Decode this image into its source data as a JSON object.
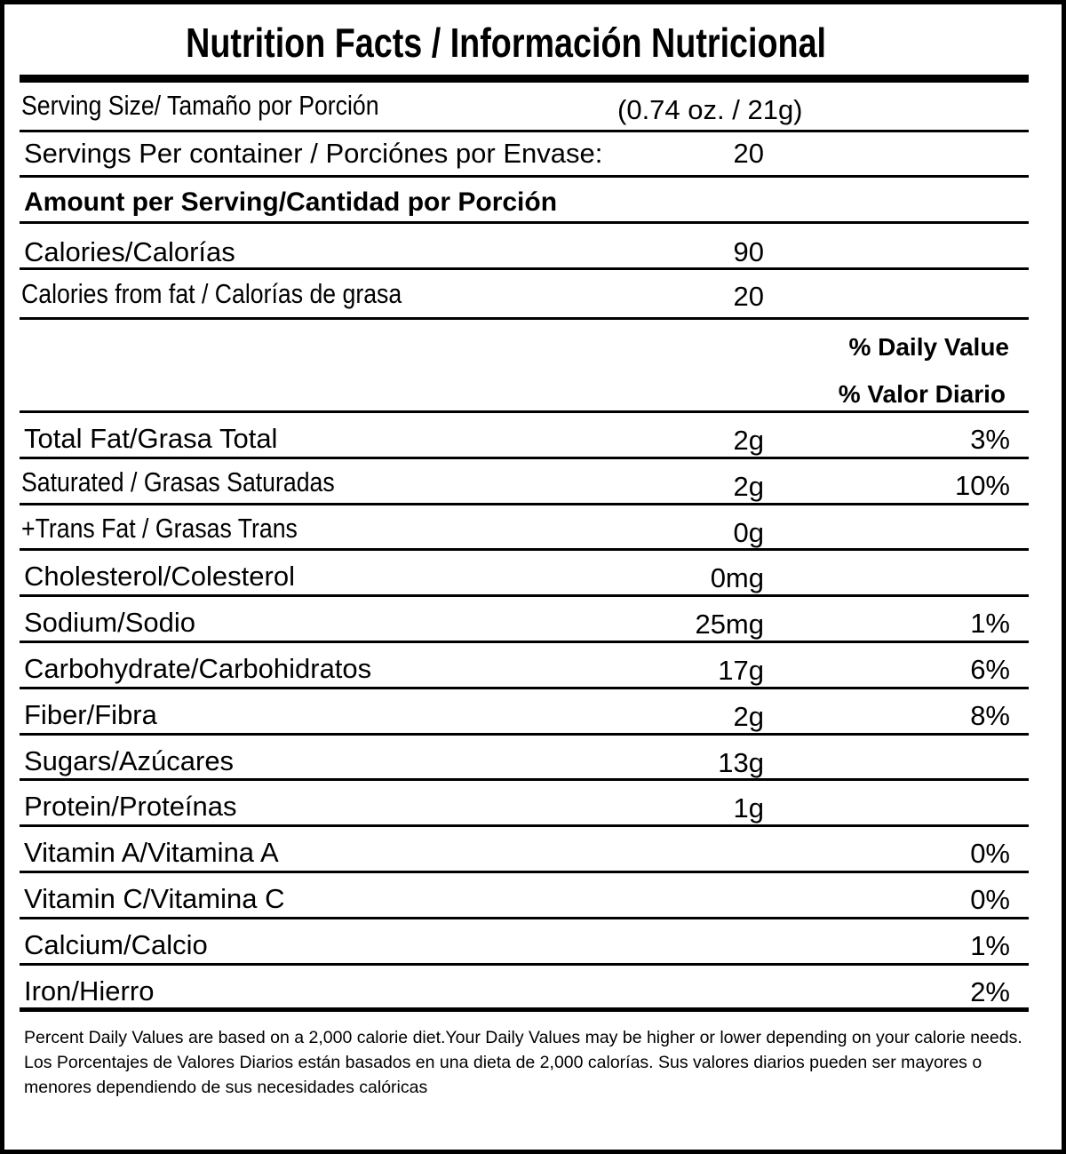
{
  "title": "Nutrition Facts / Información Nutricional",
  "serving_size": {
    "label": "Serving Size/ Tamaño por Porción",
    "value": "(0.74 oz. / 21g)"
  },
  "servings_per_container": {
    "label": "Servings Per container / Porciónes por Envase:",
    "value": "20"
  },
  "amount_per_serving": "Amount per Serving/Cantidad por Porción",
  "calories": {
    "label": "Calories/Calorías",
    "value": "90"
  },
  "calories_from_fat": {
    "label": "Calories from fat / Calorías de grasa",
    "value": "20"
  },
  "daily_value_header": {
    "line1": "% Daily Value",
    "line2": "% Valor Diario"
  },
  "nutrients": [
    {
      "label": "Total Fat/Grasa Total",
      "amount": "2g",
      "dv": "3%"
    },
    {
      "label": "Saturated / Grasas Saturadas",
      "amount": "2g",
      "dv": "10%"
    },
    {
      "label": "+Trans Fat / Grasas Trans",
      "amount": "0g",
      "dv": ""
    },
    {
      "label": "Cholesterol/Colesterol",
      "amount": "0mg",
      "dv": ""
    },
    {
      "label": "Sodium/Sodio",
      "amount": "25mg",
      "dv": "1%"
    },
    {
      "label": "Carbohydrate/Carbohidratos",
      "amount": "17g",
      "dv": "6%"
    },
    {
      "label": "Fiber/Fibra",
      "amount": "2g",
      "dv": "8%"
    },
    {
      "label": "Sugars/Azúcares",
      "amount": "13g",
      "dv": ""
    },
    {
      "label": "Protein/Proteínas",
      "amount": "1g",
      "dv": ""
    },
    {
      "label": "Vitamin A/Vitamina A",
      "amount": "",
      "dv": "0%"
    },
    {
      "label": "Vitamin C/Vitamina C",
      "amount": "",
      "dv": "0%"
    },
    {
      "label": "Calcium/Calcio",
      "amount": "",
      "dv": "1%"
    },
    {
      "label": "Iron/Hierro",
      "amount": "",
      "dv": "2%"
    }
  ],
  "footnote": {
    "english": "Percent Daily Values are based on a 2,000 calorie diet.Your Daily Values may be higher or lower depending on your calorie needs.",
    "spanish": "Los Porcentajes de Valores Diarios están basados en una dieta de 2,000 calorías. Sus valores diarios pueden ser mayores o menores dependiendo de sus necesidades calóricas"
  }
}
